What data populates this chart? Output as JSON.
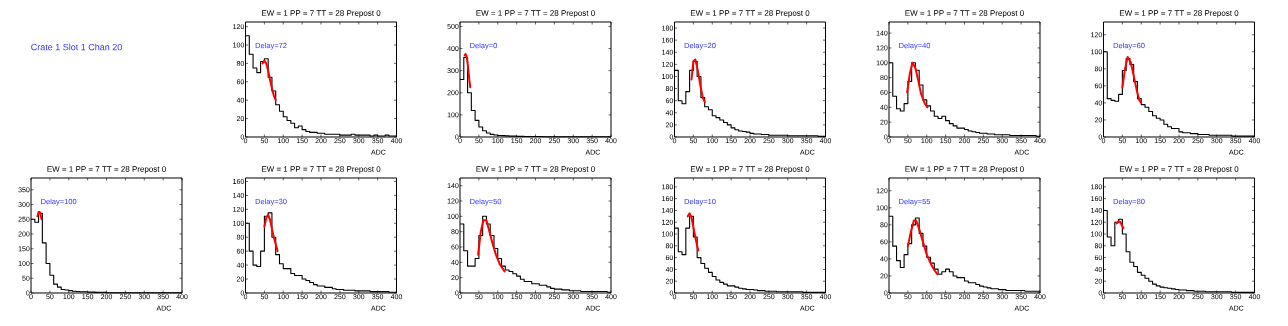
{
  "chart_data": [
    {
      "type": "other",
      "title": "Crate 1 Slot 1 Chan 20"
    },
    {
      "type": "histogram",
      "title": "EW = 1 PP = 7 TT = 28 Prepost 0",
      "xlabel": "ADC",
      "annotations": [
        "Delay=72"
      ],
      "xlim": [
        0,
        400
      ],
      "xticks": [
        0,
        50,
        100,
        150,
        200,
        250,
        300,
        350,
        400
      ],
      "ylim": [
        0,
        125
      ],
      "yticks": [
        0,
        20,
        40,
        60,
        80,
        100,
        120
      ],
      "bins": [
        0,
        10,
        20,
        30,
        40,
        50,
        60,
        70,
        80,
        90,
        100,
        110,
        120,
        130,
        140,
        150,
        160,
        170,
        180,
        190,
        200,
        210,
        220,
        230,
        240,
        250,
        260,
        270,
        280,
        290,
        300,
        310,
        320,
        330,
        340,
        350,
        360,
        370,
        380,
        390,
        400
      ],
      "series": [
        {
          "color": "#000000",
          "values": [
            110,
            90,
            75,
            70,
            82,
            85,
            65,
            50,
            35,
            28,
            22,
            18,
            15,
            10,
            12,
            8,
            6,
            5,
            5,
            4,
            4,
            3,
            3,
            3,
            3,
            2,
            2,
            2,
            3,
            2,
            2,
            2,
            2,
            1,
            2,
            1,
            1,
            2,
            1,
            1
          ]
        },
        {
          "type": "line",
          "color": "#ff0000",
          "x": [
            45,
            50,
            55,
            60,
            65,
            70,
            75,
            80
          ],
          "values": [
            80,
            83,
            80,
            72,
            62,
            53,
            45,
            40
          ]
        }
      ]
    },
    {
      "type": "histogram",
      "title": "EW = 1 PP = 7 TT = 28 Prepost 0",
      "xlabel": "ADC",
      "annotations": [
        "Delay=0"
      ],
      "xlim": [
        0,
        400
      ],
      "xticks": [
        0,
        50,
        100,
        150,
        200,
        250,
        300,
        350,
        400
      ],
      "ylim": [
        0,
        520
      ],
      "yticks": [
        0,
        100,
        200,
        300,
        400,
        500
      ],
      "bins": [
        0,
        10,
        20,
        30,
        40,
        50,
        60,
        70,
        80,
        90,
        100,
        110,
        120,
        130,
        140,
        150,
        160,
        170,
        180,
        190,
        200,
        210,
        220,
        230,
        240,
        250,
        260,
        270,
        280,
        290,
        300,
        310,
        320,
        330,
        340,
        350,
        360,
        370,
        380,
        390,
        400
      ],
      "series": [
        {
          "color": "#000000",
          "values": [
            260,
            360,
            200,
            120,
            75,
            45,
            28,
            18,
            12,
            9,
            7,
            6,
            5,
            4,
            4,
            3,
            3,
            2,
            2,
            2,
            2,
            2,
            1,
            1,
            1,
            1,
            1,
            1,
            1,
            1,
            1,
            1,
            1,
            1,
            1,
            1,
            1,
            1,
            1,
            1
          ]
        },
        {
          "type": "line",
          "color": "#ff0000",
          "x": [
            12,
            15,
            18,
            21,
            24,
            27
          ],
          "values": [
            370,
            375,
            360,
            320,
            270,
            225
          ]
        }
      ]
    },
    {
      "type": "histogram",
      "title": "EW = 1 PP = 7 TT = 28 Prepost 0",
      "xlabel": "ADC",
      "annotations": [
        "Delay=20"
      ],
      "xlim": [
        0,
        400
      ],
      "xticks": [
        0,
        50,
        100,
        150,
        200,
        250,
        300,
        350,
        400
      ],
      "ylim": [
        0,
        190
      ],
      "yticks": [
        0,
        20,
        40,
        60,
        80,
        100,
        120,
        140,
        160,
        180
      ],
      "bins": [
        0,
        10,
        20,
        30,
        40,
        50,
        60,
        70,
        80,
        90,
        100,
        110,
        120,
        130,
        140,
        150,
        160,
        170,
        180,
        190,
        200,
        210,
        220,
        230,
        240,
        250,
        260,
        270,
        280,
        290,
        300,
        310,
        320,
        330,
        340,
        350,
        360,
        370,
        380,
        390,
        400
      ],
      "series": [
        {
          "color": "#000000",
          "values": [
            110,
            60,
            55,
            75,
            110,
            125,
            100,
            65,
            50,
            45,
            35,
            32,
            28,
            24,
            20,
            15,
            12,
            10,
            9,
            8,
            6,
            5,
            5,
            4,
            4,
            3,
            3,
            3,
            3,
            3,
            2,
            2,
            2,
            2,
            2,
            2,
            2,
            2,
            1,
            1
          ]
        },
        {
          "type": "line",
          "color": "#ff0000",
          "x": [
            45,
            50,
            55,
            60,
            65,
            70,
            75,
            80
          ],
          "values": [
            95,
            125,
            128,
            115,
            98,
            80,
            65,
            58
          ]
        }
      ]
    },
    {
      "type": "histogram",
      "title": "EW = 1 PP = 7 TT = 28 Prepost 0",
      "xlabel": "ADC",
      "annotations": [
        "Delay=40"
      ],
      "xlim": [
        0,
        400
      ],
      "xticks": [
        0,
        50,
        100,
        150,
        200,
        250,
        300,
        350,
        400
      ],
      "ylim": [
        0,
        155
      ],
      "yticks": [
        0,
        20,
        40,
        60,
        80,
        100,
        120,
        140
      ],
      "bins": [
        0,
        10,
        20,
        30,
        40,
        50,
        60,
        70,
        80,
        90,
        100,
        110,
        120,
        130,
        140,
        150,
        160,
        170,
        180,
        190,
        200,
        210,
        220,
        230,
        240,
        250,
        260,
        270,
        280,
        290,
        300,
        310,
        320,
        330,
        340,
        350,
        360,
        370,
        380,
        390,
        400
      ],
      "series": [
        {
          "color": "#000000",
          "values": [
            100,
            55,
            38,
            35,
            45,
            75,
            100,
            90,
            70,
            50,
            42,
            35,
            28,
            25,
            28,
            22,
            18,
            15,
            12,
            12,
            10,
            8,
            7,
            6,
            5,
            5,
            4,
            4,
            3,
            3,
            3,
            3,
            2,
            2,
            2,
            2,
            2,
            2,
            2,
            1
          ]
        },
        {
          "type": "line",
          "color": "#ff0000",
          "x": [
            48,
            55,
            62,
            70,
            78,
            85,
            95,
            102
          ],
          "values": [
            60,
            85,
            100,
            93,
            75,
            58,
            45,
            40
          ]
        }
      ]
    },
    {
      "type": "histogram",
      "title": "EW = 1 PP = 7 TT = 28 Prepost 0",
      "xlabel": "ADC",
      "annotations": [
        "Delay=60"
      ],
      "xlim": [
        0,
        400
      ],
      "xticks": [
        0,
        50,
        100,
        150,
        200,
        250,
        300,
        350,
        400
      ],
      "ylim": [
        0,
        135
      ],
      "yticks": [
        0,
        20,
        40,
        60,
        80,
        100,
        120
      ],
      "bins": [
        0,
        10,
        20,
        30,
        40,
        50,
        60,
        70,
        80,
        90,
        100,
        110,
        120,
        130,
        140,
        150,
        160,
        170,
        180,
        190,
        200,
        210,
        220,
        230,
        240,
        250,
        260,
        270,
        280,
        290,
        300,
        310,
        320,
        330,
        340,
        350,
        360,
        370,
        380,
        390,
        400
      ],
      "series": [
        {
          "color": "#000000",
          "values": [
            100,
            45,
            43,
            42,
            50,
            78,
            92,
            85,
            65,
            45,
            38,
            35,
            30,
            25,
            22,
            20,
            15,
            12,
            10,
            10,
            6,
            5,
            5,
            4,
            4,
            3,
            3,
            3,
            2,
            2,
            2,
            2,
            2,
            2,
            1,
            1,
            1,
            1,
            1,
            1
          ]
        },
        {
          "type": "line",
          "color": "#ff0000",
          "x": [
            50,
            57,
            64,
            72,
            80,
            88,
            95,
            100
          ],
          "values": [
            58,
            80,
            94,
            88,
            72,
            55,
            43,
            40
          ]
        }
      ]
    },
    {
      "type": "histogram",
      "title": "EW = 1 PP = 7 TT = 28 Prepost 0",
      "xlabel": "ADC",
      "annotations": [
        "Delay=100"
      ],
      "xlim": [
        0,
        400
      ],
      "xticks": [
        0,
        50,
        100,
        150,
        200,
        250,
        300,
        350,
        400
      ],
      "ylim": [
        0,
        390
      ],
      "yticks": [
        0,
        50,
        100,
        150,
        200,
        250,
        300,
        350
      ],
      "bins": [
        0,
        10,
        20,
        30,
        40,
        50,
        60,
        70,
        80,
        90,
        100,
        110,
        120,
        130,
        140,
        150,
        160,
        170,
        180,
        190,
        200,
        210,
        220,
        230,
        240,
        250,
        260,
        270,
        280,
        290,
        300,
        310,
        320,
        330,
        340,
        350,
        360,
        370,
        380,
        390,
        400
      ],
      "series": [
        {
          "color": "#000000",
          "values": [
            250,
            240,
            270,
            170,
            100,
            60,
            30,
            20,
            12,
            10,
            8,
            6,
            5,
            4,
            4,
            3,
            3,
            2,
            2,
            2,
            1,
            1,
            1,
            1,
            1,
            1,
            1,
            1,
            1,
            1,
            1,
            1,
            1,
            1,
            1,
            1,
            1,
            1,
            1,
            1
          ]
        },
        {
          "type": "line",
          "color": "#ff0000",
          "x": [
            17,
            20,
            23,
            26,
            28
          ],
          "values": [
            260,
            275,
            275,
            262,
            250
          ]
        }
      ]
    },
    {
      "type": "histogram",
      "title": "EW = 1 PP = 7 TT = 28 Prepost 0",
      "xlabel": "ADC",
      "annotations": [
        "Delay=30"
      ],
      "xlim": [
        0,
        400
      ],
      "xticks": [
        0,
        50,
        100,
        150,
        200,
        250,
        300,
        350,
        400
      ],
      "ylim": [
        0,
        165
      ],
      "yticks": [
        0,
        20,
        40,
        60,
        80,
        100,
        120,
        140,
        160
      ],
      "bins": [
        0,
        10,
        20,
        30,
        40,
        50,
        60,
        70,
        80,
        90,
        100,
        110,
        120,
        130,
        140,
        150,
        160,
        170,
        180,
        190,
        200,
        210,
        220,
        230,
        240,
        250,
        260,
        270,
        280,
        290,
        300,
        310,
        320,
        330,
        340,
        350,
        360,
        370,
        380,
        390,
        400
      ],
      "series": [
        {
          "color": "#000000",
          "values": [
            100,
            60,
            40,
            38,
            60,
            110,
            115,
            80,
            55,
            42,
            35,
            35,
            28,
            25,
            25,
            20,
            18,
            15,
            12,
            10,
            10,
            8,
            8,
            6,
            5,
            5,
            4,
            4,
            4,
            3,
            3,
            3,
            3,
            2,
            2,
            2,
            2,
            2,
            1,
            1
          ]
        },
        {
          "type": "line",
          "color": "#ff0000",
          "x": [
            50,
            55,
            60,
            65,
            70,
            75,
            80,
            85
          ],
          "values": [
            95,
            108,
            112,
            105,
            92,
            80,
            70,
            60
          ]
        }
      ]
    },
    {
      "type": "histogram",
      "title": "EW = 1 PP = 7 TT = 28 Prepost 0",
      "xlabel": "ADC",
      "annotations": [
        "Delay=50"
      ],
      "xlim": [
        0,
        400
      ],
      "xticks": [
        0,
        50,
        100,
        150,
        200,
        250,
        300,
        350,
        400
      ],
      "ylim": [
        0,
        150
      ],
      "yticks": [
        0,
        20,
        40,
        60,
        80,
        100,
        120,
        140
      ],
      "bins": [
        0,
        10,
        20,
        30,
        40,
        50,
        60,
        70,
        80,
        90,
        100,
        110,
        120,
        130,
        140,
        150,
        160,
        170,
        180,
        190,
        200,
        210,
        220,
        230,
        240,
        250,
        260,
        270,
        280,
        290,
        300,
        310,
        320,
        330,
        340,
        350,
        360,
        370,
        380,
        390,
        400
      ],
      "series": [
        {
          "color": "#000000",
          "values": [
            90,
            55,
            35,
            35,
            45,
            75,
            100,
            90,
            75,
            58,
            45,
            35,
            30,
            28,
            25,
            22,
            18,
            15,
            15,
            12,
            12,
            10,
            10,
            8,
            6,
            5,
            5,
            4,
            4,
            3,
            3,
            3,
            2,
            2,
            2,
            2,
            2,
            2,
            2,
            1
          ]
        },
        {
          "type": "line",
          "color": "#ff0000",
          "x": [
            48,
            55,
            62,
            70,
            78,
            86,
            95,
            105,
            118
          ],
          "values": [
            50,
            80,
            95,
            95,
            80,
            65,
            50,
            38,
            28
          ]
        }
      ]
    },
    {
      "type": "histogram",
      "title": "EW = 1 PP = 7 TT = 28 Prepost 0",
      "xlabel": "ADC",
      "annotations": [
        "Delay=10"
      ],
      "xlim": [
        0,
        400
      ],
      "xticks": [
        0,
        50,
        100,
        150,
        200,
        250,
        300,
        350,
        400
      ],
      "ylim": [
        0,
        195
      ],
      "yticks": [
        0,
        20,
        40,
        60,
        80,
        100,
        120,
        140,
        160,
        180
      ],
      "bins": [
        0,
        10,
        20,
        30,
        40,
        50,
        60,
        70,
        80,
        90,
        100,
        110,
        120,
        130,
        140,
        150,
        160,
        170,
        180,
        190,
        200,
        210,
        220,
        230,
        240,
        250,
        260,
        270,
        280,
        290,
        300,
        310,
        320,
        330,
        340,
        350,
        360,
        370,
        380,
        390,
        400
      ],
      "series": [
        {
          "color": "#000000",
          "values": [
            110,
            70,
            65,
            110,
            130,
            95,
            60,
            50,
            42,
            35,
            28,
            22,
            18,
            15,
            12,
            12,
            10,
            8,
            7,
            6,
            6,
            5,
            4,
            4,
            3,
            3,
            3,
            2,
            2,
            2,
            2,
            2,
            2,
            2,
            1,
            1,
            1,
            1,
            1,
            1
          ]
        },
        {
          "type": "line",
          "color": "#ff0000",
          "x": [
            35,
            40,
            45,
            50,
            55,
            60,
            63
          ],
          "values": [
            130,
            135,
            128,
            112,
            95,
            80,
            72
          ]
        }
      ]
    },
    {
      "type": "histogram",
      "title": "EW = 1 PP = 7 TT = 28 Prepost 0",
      "xlabel": "ADC",
      "annotations": [
        "Delay=55"
      ],
      "xlim": [
        0,
        400
      ],
      "xticks": [
        0,
        50,
        100,
        150,
        200,
        250,
        300,
        350,
        400
      ],
      "ylim": [
        0,
        135
      ],
      "yticks": [
        0,
        20,
        40,
        60,
        80,
        100,
        120
      ],
      "bins": [
        0,
        10,
        20,
        30,
        40,
        50,
        60,
        70,
        80,
        90,
        100,
        110,
        120,
        130,
        140,
        150,
        160,
        170,
        180,
        190,
        200,
        210,
        220,
        230,
        240,
        250,
        260,
        270,
        280,
        290,
        300,
        310,
        320,
        330,
        340,
        350,
        360,
        370,
        380,
        390,
        400
      ],
      "series": [
        {
          "color": "#000000",
          "values": [
            90,
            55,
            38,
            30,
            45,
            58,
            80,
            88,
            70,
            55,
            42,
            35,
            28,
            22,
            25,
            28,
            25,
            20,
            18,
            18,
            14,
            12,
            12,
            10,
            8,
            7,
            6,
            5,
            5,
            4,
            4,
            3,
            3,
            3,
            3,
            3,
            2,
            2,
            2,
            2
          ]
        },
        {
          "type": "line",
          "color": "#ff0000",
          "x": [
            50,
            58,
            66,
            72,
            80,
            90,
            100,
            110,
            120,
            128
          ],
          "values": [
            55,
            72,
            85,
            85,
            75,
            60,
            45,
            35,
            27,
            22
          ]
        }
      ]
    },
    {
      "type": "histogram",
      "title": "EW = 1 PP = 7 TT = 28 Prepost 0",
      "xlabel": "ADC",
      "annotations": [
        "Delay=80"
      ],
      "xlim": [
        0,
        400
      ],
      "xticks": [
        0,
        50,
        100,
        150,
        200,
        250,
        300,
        350,
        400
      ],
      "ylim": [
        0,
        195
      ],
      "yticks": [
        0,
        20,
        40,
        60,
        80,
        100,
        120,
        140,
        160,
        180
      ],
      "bins": [
        0,
        10,
        20,
        30,
        40,
        50,
        60,
        70,
        80,
        90,
        100,
        110,
        120,
        130,
        140,
        150,
        160,
        170,
        180,
        190,
        200,
        210,
        220,
        230,
        240,
        250,
        260,
        270,
        280,
        290,
        300,
        310,
        320,
        330,
        340,
        350,
        360,
        370,
        380,
        390,
        400
      ],
      "series": [
        {
          "color": "#000000",
          "values": [
            140,
            95,
            80,
            120,
            125,
            100,
            70,
            52,
            45,
            35,
            30,
            25,
            20,
            15,
            12,
            10,
            9,
            8,
            7,
            6,
            5,
            5,
            4,
            4,
            3,
            3,
            3,
            2,
            2,
            2,
            2,
            2,
            2,
            2,
            1,
            1,
            1,
            1,
            1,
            1
          ]
        },
        {
          "type": "line",
          "color": "#ff0000",
          "x": [
            35,
            40,
            45,
            50,
            53
          ],
          "values": [
            118,
            122,
            120,
            113,
            110
          ]
        }
      ]
    }
  ]
}
